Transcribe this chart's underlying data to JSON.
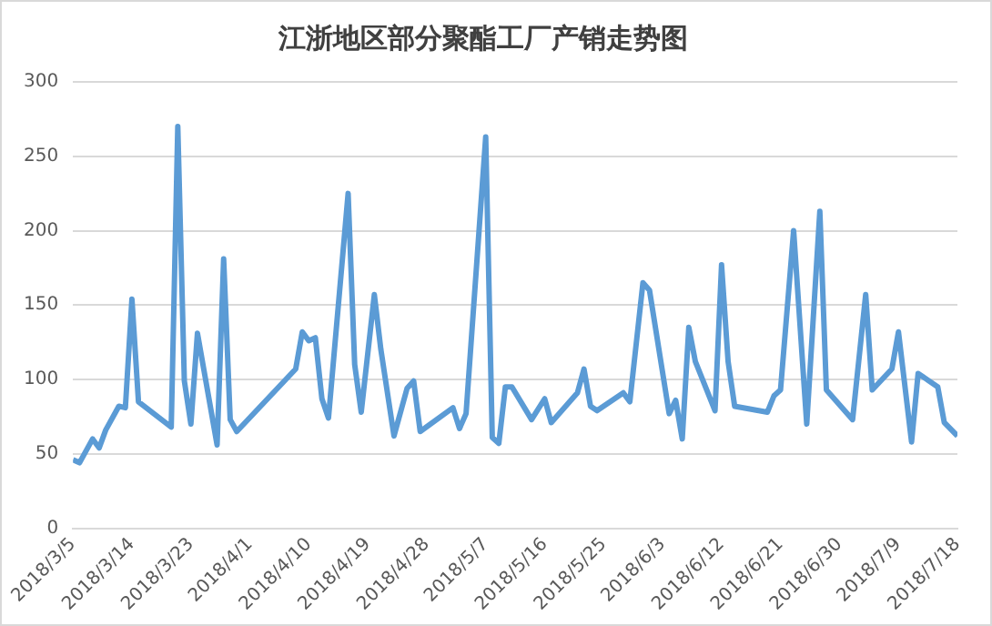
{
  "chart_data": {
    "type": "line",
    "title": "江浙地区部分聚酯工厂产销走势图",
    "x": [
      "2018-03-05",
      "2018-03-06",
      "2018-03-08",
      "2018-03-09",
      "2018-03-10",
      "2018-03-12",
      "2018-03-13",
      "2018-03-14",
      "2018-03-15",
      "2018-03-20",
      "2018-03-21",
      "2018-03-22",
      "2018-03-23",
      "2018-03-24",
      "2018-03-27",
      "2018-03-28",
      "2018-03-29",
      "2018-03-30",
      "2018-04-08",
      "2018-04-09",
      "2018-04-10",
      "2018-04-11",
      "2018-04-12",
      "2018-04-13",
      "2018-04-16",
      "2018-04-17",
      "2018-04-18",
      "2018-04-20",
      "2018-04-21",
      "2018-04-23",
      "2018-04-25",
      "2018-04-26",
      "2018-04-27",
      "2018-05-02",
      "2018-05-03",
      "2018-05-04",
      "2018-05-07",
      "2018-05-08",
      "2018-05-09",
      "2018-05-10",
      "2018-05-11",
      "2018-05-14",
      "2018-05-16",
      "2018-05-17",
      "2018-05-21",
      "2018-05-22",
      "2018-05-23",
      "2018-05-24",
      "2018-05-28",
      "2018-05-29",
      "2018-05-31",
      "2018-06-01",
      "2018-06-04",
      "2018-06-05",
      "2018-06-06",
      "2018-06-07",
      "2018-06-08",
      "2018-06-11",
      "2018-06-12",
      "2018-06-13",
      "2018-06-14",
      "2018-06-19",
      "2018-06-20",
      "2018-06-21",
      "2018-06-23",
      "2018-06-25",
      "2018-06-27",
      "2018-06-28",
      "2018-07-02",
      "2018-07-04",
      "2018-07-05",
      "2018-07-08",
      "2018-07-09",
      "2018-07-11",
      "2018-07-12",
      "2018-07-15",
      "2018-07-16",
      "2018-07-18"
    ],
    "series": [
      {
        "color": "#5b9bd5",
        "values": [
          46,
          44,
          60,
          54,
          66,
          82,
          81,
          154,
          85,
          68,
          270,
          99,
          70,
          131,
          56,
          181,
          73,
          65,
          107,
          132,
          126,
          128,
          87,
          74,
          225,
          110,
          78,
          157,
          120,
          62,
          94,
          99,
          65,
          81,
          67,
          77,
          263,
          61,
          57,
          95,
          95,
          73,
          87,
          71,
          91,
          107,
          82,
          79,
          91,
          85,
          165,
          160,
          77,
          86,
          60,
          135,
          112,
          79,
          177,
          112,
          82,
          78,
          89,
          93,
          200,
          70,
          213,
          93,
          73,
          157,
          93,
          107,
          132,
          58,
          104,
          95,
          71,
          62
        ]
      }
    ],
    "xlim": [
      "2018-03-05",
      "2018-07-18"
    ],
    "xticks": [
      {
        "value": "2018-03-05",
        "label": "2018/3/5"
      },
      {
        "value": "2018-03-14",
        "label": "2018/3/14"
      },
      {
        "value": "2018-03-23",
        "label": "2018/3/23"
      },
      {
        "value": "2018-04-01",
        "label": "2018/4/1"
      },
      {
        "value": "2018-04-10",
        "label": "2018/4/10"
      },
      {
        "value": "2018-04-19",
        "label": "2018/4/19"
      },
      {
        "value": "2018-04-28",
        "label": "2018/4/28"
      },
      {
        "value": "2018-05-07",
        "label": "2018/5/7"
      },
      {
        "value": "2018-05-16",
        "label": "2018/5/16"
      },
      {
        "value": "2018-05-25",
        "label": "2018/5/25"
      },
      {
        "value": "2018-06-03",
        "label": "2018/6/3"
      },
      {
        "value": "2018-06-12",
        "label": "2018/6/12"
      },
      {
        "value": "2018-06-21",
        "label": "2018/6/21"
      },
      {
        "value": "2018-06-30",
        "label": "2018/6/30"
      },
      {
        "value": "2018-07-09",
        "label": "2018/7/9"
      },
      {
        "value": "2018-07-18",
        "label": "2018/7/18"
      }
    ],
    "ylim": [
      0,
      300
    ],
    "yticks": [
      0,
      50,
      100,
      150,
      200,
      250,
      300
    ],
    "grid": "y",
    "legend": false,
    "marker": "none",
    "line_style": "solid"
  }
}
